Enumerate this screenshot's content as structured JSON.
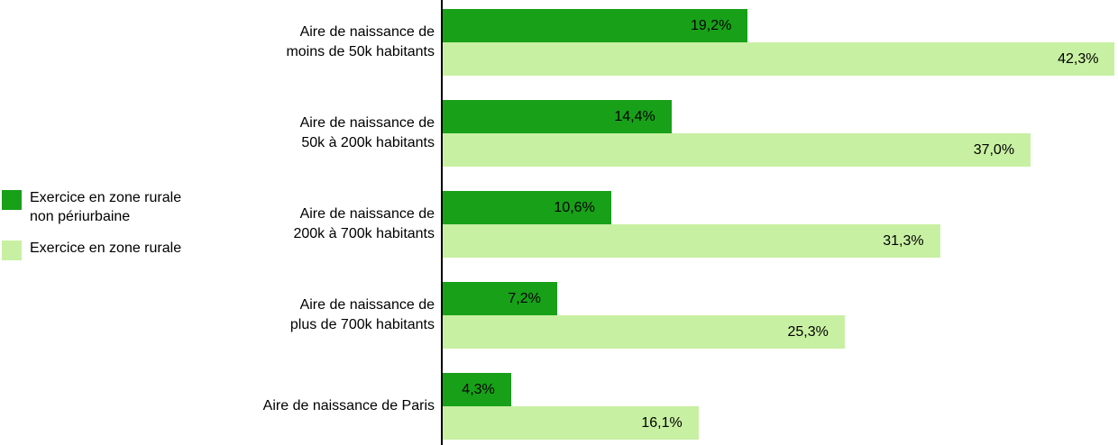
{
  "chart_data": {
    "type": "bar",
    "orientation": "horizontal",
    "title": "",
    "xlabel": "",
    "ylabel": "",
    "xlim": [
      0,
      42.5
    ],
    "grid": false,
    "legend_position": "left",
    "categories": [
      "Aire de naissance de\nmoins de 50k habitants",
      "Aire de naissance de\n50k à 200k habitants",
      "Aire de naissance de\n200k à 700k habitants",
      "Aire de naissance de\nplus de 700k habitants",
      "Aire de naissance de Paris"
    ],
    "series": [
      {
        "name": "Exercice en zone rurale\nnon périurbaine",
        "color": "#18A018",
        "values": [
          19.2,
          14.4,
          10.6,
          7.2,
          4.3
        ],
        "value_labels": [
          "19,2%",
          "14,4%",
          "10,6%",
          "7,2%",
          "4,3%"
        ]
      },
      {
        "name": "Exercice en zone rurale",
        "color": "#C8F0A2",
        "values": [
          42.3,
          37.0,
          31.3,
          25.3,
          16.1
        ],
        "value_labels": [
          "42,3%",
          "37,0%",
          "31,3%",
          "25,3%",
          "16,1%"
        ]
      }
    ]
  }
}
